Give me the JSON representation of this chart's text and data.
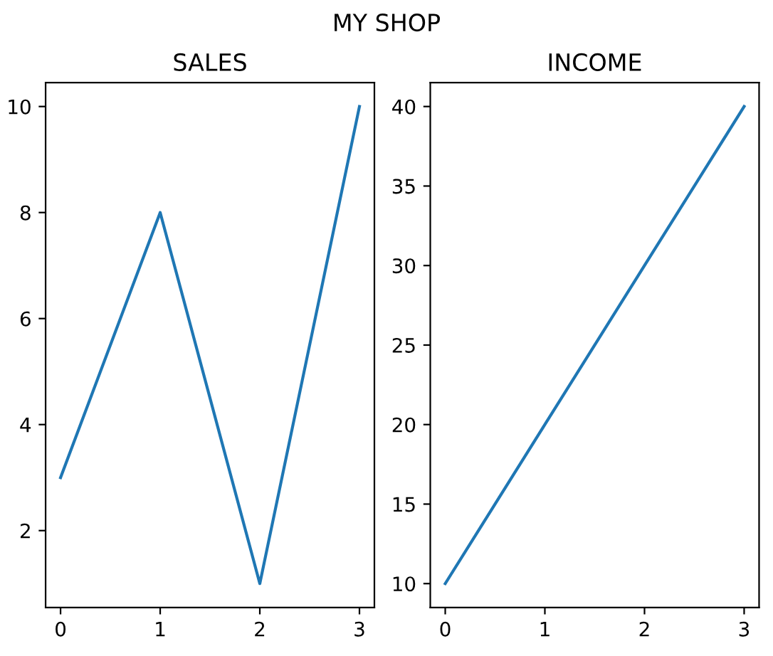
{
  "chart_data": [
    {
      "type": "line",
      "title": "SALES",
      "annotations": [
        "MY SHOP"
      ],
      "x": [
        0,
        1,
        2,
        3
      ],
      "series": [
        {
          "color": "#1f77b4",
          "values": [
            3,
            8,
            1,
            10
          ]
        }
      ],
      "xlim": [
        -0.15,
        3.15
      ],
      "xticks": [
        0,
        1,
        2,
        3
      ],
      "ylim": [
        0.55,
        10.45
      ],
      "yticks": [
        2,
        4,
        6,
        8,
        10
      ],
      "grid": false,
      "legend": false,
      "marker": "none",
      "line_style": "solid"
    },
    {
      "type": "line",
      "title": "INCOME",
      "x": [
        0,
        1,
        2,
        3
      ],
      "series": [
        {
          "color": "#1f77b4",
          "values": [
            10,
            20,
            30,
            40
          ]
        }
      ],
      "xlim": [
        -0.15,
        3.15
      ],
      "xticks": [
        0,
        1,
        2,
        3
      ],
      "ylim": [
        8.5,
        41.5
      ],
      "yticks": [
        10,
        15,
        20,
        25,
        30,
        35,
        40
      ],
      "grid": false,
      "legend": false,
      "marker": "none",
      "line_style": "solid"
    }
  ]
}
